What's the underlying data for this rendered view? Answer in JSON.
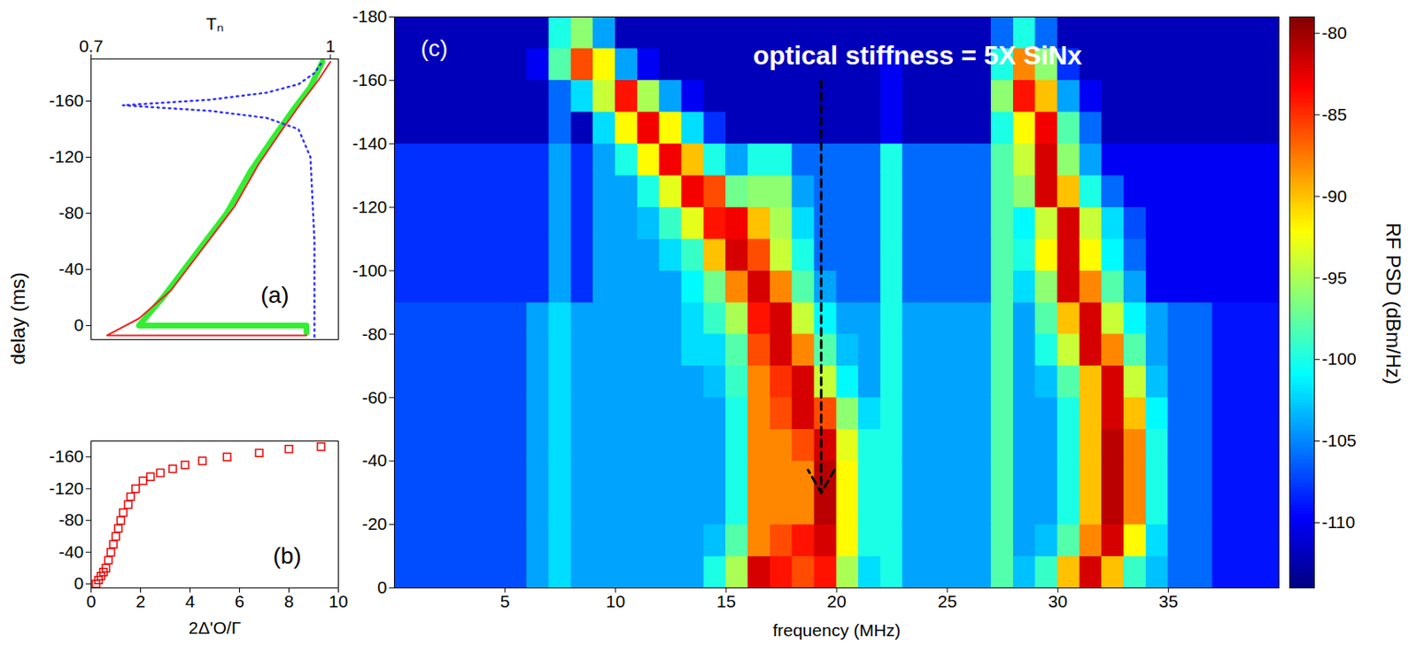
{
  "chart_data": [
    {
      "type": "line",
      "panel_label": "(a)",
      "x_label": "Tₙ",
      "y_label": "delay (ms)",
      "xlim": [
        0.7,
        1.01
      ],
      "xticks": [
        0.7,
        1
      ],
      "ylim": [
        10,
        -190
      ],
      "yticks": [
        -160,
        -120,
        -80,
        -40,
        0
      ],
      "series": [
        {
          "color": "#33ee33",
          "line_style": "solid",
          "x": [
            0.97,
            0.97,
            0.76,
            0.79,
            0.83,
            0.87,
            0.9,
            0.93,
            0.955,
            0.975,
            0.99
          ],
          "y": [
            5,
            0,
            0,
            -20,
            -50,
            -80,
            -110,
            -135,
            -155,
            -170,
            -188
          ]
        },
        {
          "color": "#ee2222",
          "line_style": "solid",
          "x": [
            0.97,
            0.72,
            0.76,
            0.8,
            0.84,
            0.88,
            0.91,
            0.94,
            0.965,
            0.985,
            1.0
          ],
          "y": [
            7,
            7,
            -5,
            -25,
            -55,
            -85,
            -115,
            -140,
            -160,
            -175,
            -188
          ]
        },
        {
          "color": "#3333ff",
          "line_style": "dotted",
          "x": [
            0.98,
            0.98,
            0.975,
            0.96,
            0.92,
            0.85,
            0.74,
            0.85,
            0.92,
            0.96,
            0.98,
            0.99
          ],
          "y": [
            8,
            -60,
            -120,
            -140,
            -148,
            -153,
            -157,
            -161,
            -166,
            -172,
            -180,
            -188
          ]
        }
      ]
    },
    {
      "type": "scatter",
      "panel_label": "(b)",
      "x_label": "2Δ'O/Γ",
      "xlim": [
        0,
        10
      ],
      "xticks": [
        0,
        2,
        4,
        6,
        8,
        10
      ],
      "ylim": [
        5,
        -180
      ],
      "yticks": [
        -160,
        -120,
        -80,
        -40,
        0
      ],
      "color": "#ee0000",
      "marker": "square",
      "x": [
        0.2,
        0.3,
        0.4,
        0.5,
        0.6,
        0.7,
        0.8,
        0.9,
        1.0,
        1.1,
        1.2,
        1.3,
        1.5,
        1.6,
        1.8,
        2.1,
        2.4,
        2.8,
        3.3,
        3.8,
        4.5,
        5.5,
        6.8,
        8.0,
        9.3
      ],
      "y": [
        0,
        -5,
        -10,
        -15,
        -20,
        -30,
        -40,
        -50,
        -60,
        -70,
        -80,
        -90,
        -100,
        -110,
        -120,
        -130,
        -135,
        -140,
        -145,
        -150,
        -155,
        -160,
        -165,
        -170,
        -173
      ]
    },
    {
      "type": "heatmap",
      "panel_label": "(c)",
      "x_label": "frequency (MHz)",
      "xlim": [
        0,
        40
      ],
      "xticks": [
        5,
        10,
        15,
        20,
        25,
        30,
        35
      ],
      "ylim": [
        0,
        -180
      ],
      "yticks": [
        -180,
        -160,
        -140,
        -120,
        -100,
        -80,
        -60,
        -40,
        -20,
        0
      ],
      "annotation": {
        "text": "optical stiffness = 5X SiNx",
        "arrow": {
          "x": 19.3,
          "y_from": -160,
          "y_to": -30
        }
      },
      "colorbar": {
        "label": "RF PSD (dBm/Hz)",
        "range": [
          -114,
          -79
        ],
        "ticks": [
          -80,
          -85,
          -90,
          -95,
          -100,
          -105,
          -110
        ]
      },
      "x_bins": [
        0,
        1,
        2,
        3,
        4,
        5,
        6,
        7,
        8,
        9,
        10,
        11,
        12,
        13,
        14,
        15,
        16,
        17,
        18,
        19,
        20,
        21,
        22,
        23,
        24,
        25,
        26,
        27,
        28,
        29,
        30,
        31,
        32,
        33,
        34,
        35,
        36,
        37,
        38,
        39,
        40
      ],
      "y_bins": [
        0,
        -10,
        -20,
        -30,
        -40,
        -50,
        -60,
        -70,
        -80,
        -90,
        -100,
        -110,
        -120,
        -130,
        -140,
        -150,
        -160,
        -170,
        -180
      ],
      "values": [
        [
          -107,
          -107,
          -107,
          -107,
          -107,
          -107,
          -104,
          -102,
          -104,
          -104,
          -104,
          -104,
          -104,
          -104,
          -100,
          -95,
          -82,
          -84,
          -86,
          -84,
          -95,
          -102,
          -100,
          -104,
          -104,
          -104,
          -104,
          -98,
          -103,
          -99,
          -90,
          -82,
          -90,
          -99,
          -103,
          -106,
          -106,
          -109,
          -109,
          -109
        ],
        [
          -107,
          -107,
          -107,
          -107,
          -107,
          -107,
          -104,
          -102,
          -104,
          -104,
          -104,
          -104,
          -104,
          -104,
          -103,
          -98,
          -88,
          -86,
          -84,
          -82,
          -92,
          -100,
          -100,
          -104,
          -104,
          -104,
          -104,
          -98,
          -104,
          -103,
          -98,
          -88,
          -82,
          -92,
          -102,
          -106,
          -106,
          -109,
          -109,
          -109
        ],
        [
          -107,
          -107,
          -107,
          -107,
          -107,
          -107,
          -104,
          -102,
          -104,
          -104,
          -104,
          -104,
          -104,
          -104,
          -104,
          -100,
          -88,
          -88,
          -88,
          -81,
          -92,
          -100,
          -100,
          -104,
          -104,
          -104,
          -104,
          -98,
          -104,
          -104,
          -100,
          -90,
          -81,
          -88,
          -100,
          -106,
          -106,
          -109,
          -109,
          -109
        ],
        [
          -107,
          -107,
          -107,
          -107,
          -107,
          -107,
          -104,
          -102,
          -104,
          -104,
          -104,
          -104,
          -104,
          -104,
          -104,
          -100,
          -88,
          -88,
          -88,
          -81,
          -92,
          -100,
          -100,
          -104,
          -104,
          -104,
          -104,
          -98,
          -104,
          -104,
          -100,
          -90,
          -81,
          -88,
          -100,
          -106,
          -106,
          -109,
          -109,
          -109
        ],
        [
          -107,
          -107,
          -107,
          -107,
          -107,
          -107,
          -104,
          -102,
          -104,
          -104,
          -104,
          -104,
          -104,
          -104,
          -104,
          -100,
          -88,
          -88,
          -86,
          -82,
          -93,
          -100,
          -100,
          -104,
          -104,
          -104,
          -104,
          -98,
          -104,
          -104,
          -100,
          -90,
          -81,
          -88,
          -100,
          -106,
          -106,
          -109,
          -109,
          -109
        ],
        [
          -107,
          -107,
          -107,
          -107,
          -107,
          -107,
          -104,
          -102,
          -104,
          -104,
          -104,
          -104,
          -104,
          -104,
          -104,
          -100,
          -88,
          -86,
          -82,
          -86,
          -96,
          -102,
          -100,
          -104,
          -104,
          -104,
          -104,
          -98,
          -104,
          -104,
          -100,
          -90,
          -82,
          -90,
          -101,
          -106,
          -106,
          -109,
          -109,
          -109
        ],
        [
          -107,
          -107,
          -107,
          -107,
          -107,
          -107,
          -104,
          -102,
          -104,
          -104,
          -104,
          -104,
          -104,
          -104,
          -103,
          -99,
          -88,
          -85,
          -82,
          -94,
          -101,
          -104,
          -100,
          -104,
          -104,
          -104,
          -104,
          -98,
          -104,
          -103,
          -98,
          -90,
          -82,
          -94,
          -103,
          -106,
          -106,
          -109,
          -109,
          -109
        ],
        [
          -107,
          -107,
          -107,
          -107,
          -107,
          -107,
          -104,
          -102,
          -104,
          -104,
          -104,
          -104,
          -104,
          -102,
          -102,
          -98,
          -86,
          -82,
          -88,
          -98,
          -103,
          -104,
          -100,
          -104,
          -104,
          -104,
          -104,
          -98,
          -104,
          -100,
          -94,
          -82,
          -88,
          -98,
          -104,
          -106,
          -106,
          -109,
          -109,
          -109
        ],
        [
          -107,
          -107,
          -107,
          -107,
          -107,
          -107,
          -104,
          -102,
          -104,
          -104,
          -104,
          -104,
          -104,
          -102,
          -99,
          -95,
          -84,
          -82,
          -94,
          -101,
          -104,
          -104,
          -100,
          -104,
          -104,
          -104,
          -104,
          -98,
          -104,
          -98,
          -90,
          -82,
          -94,
          -101,
          -104,
          -106,
          -106,
          -109,
          -109,
          -109
        ],
        [
          -108,
          -108,
          -108,
          -108,
          -108,
          -108,
          -108,
          -104,
          -108,
          -104,
          -104,
          -104,
          -104,
          -101,
          -97,
          -88,
          -82,
          -88,
          -98,
          -104,
          -106,
          -106,
          -100,
          -106,
          -106,
          -106,
          -106,
          -98,
          -102,
          -96,
          -82,
          -88,
          -98,
          -104,
          -110,
          -110,
          -110,
          -110,
          -110,
          -110
        ],
        [
          -108,
          -108,
          -108,
          -108,
          -108,
          -108,
          -108,
          -104,
          -108,
          -104,
          -104,
          -104,
          -102,
          -99,
          -90,
          -82,
          -86,
          -94,
          -100,
          -106,
          -106,
          -106,
          -100,
          -106,
          -106,
          -106,
          -106,
          -98,
          -100,
          -92,
          -82,
          -92,
          -101,
          -106,
          -110,
          -110,
          -110,
          -110,
          -110,
          -110
        ],
        [
          -108,
          -108,
          -108,
          -108,
          -108,
          -108,
          -108,
          -104,
          -108,
          -104,
          -104,
          -103,
          -99,
          -93,
          -84,
          -83,
          -90,
          -95,
          -102,
          -106,
          -106,
          -106,
          -100,
          -106,
          -106,
          -106,
          -106,
          -98,
          -101,
          -94,
          -82,
          -94,
          -102,
          -107,
          -110,
          -110,
          -110,
          -110,
          -110,
          -110
        ],
        [
          -108,
          -108,
          -108,
          -108,
          -108,
          -108,
          -108,
          -104,
          -108,
          -104,
          -104,
          -100,
          -93,
          -83,
          -86,
          -97,
          -96,
          -96,
          -104,
          -106,
          -106,
          -106,
          -100,
          -106,
          -106,
          -106,
          -106,
          -98,
          -96,
          -82,
          -90,
          -100,
          -106,
          -110,
          -110,
          -110,
          -110,
          -110,
          -110,
          -110
        ],
        [
          -108,
          -108,
          -108,
          -108,
          -108,
          -108,
          -108,
          -104,
          -108,
          -104,
          -100,
          -92,
          -83,
          -90,
          -100,
          -104,
          -100,
          -100,
          -106,
          -106,
          -106,
          -106,
          -100,
          -106,
          -106,
          -106,
          -106,
          -98,
          -94,
          -82,
          -96,
          -104,
          -110,
          -110,
          -110,
          -110,
          -110,
          -110,
          -110,
          -110
        ],
        [
          -112,
          -112,
          -112,
          -112,
          -112,
          -112,
          -112,
          -106,
          -112,
          -102,
          -92,
          -83,
          -92,
          -102,
          -108,
          -112,
          -112,
          -112,
          -112,
          -112,
          -112,
          -112,
          -110,
          -112,
          -112,
          -112,
          -112,
          -100,
          -92,
          -83,
          -98,
          -106,
          -112,
          -112,
          -112,
          -112,
          -112,
          -112,
          -112,
          -112
        ],
        [
          -112,
          -112,
          -112,
          -112,
          -112,
          -112,
          -112,
          -106,
          -102,
          -94,
          -84,
          -95,
          -104,
          -110,
          -112,
          -112,
          -112,
          -112,
          -112,
          -112,
          -112,
          -112,
          -110,
          -112,
          -112,
          -112,
          -112,
          -96,
          -84,
          -90,
          -104,
          -110,
          -112,
          -112,
          -112,
          -112,
          -112,
          -112,
          -112,
          -112
        ],
        [
          -112,
          -112,
          -112,
          -112,
          -112,
          -112,
          -110,
          -98,
          -86,
          -92,
          -104,
          -110,
          -112,
          -112,
          -112,
          -112,
          -112,
          -112,
          -112,
          -112,
          -112,
          -112,
          -110,
          -112,
          -112,
          -112,
          -112,
          -100,
          -88,
          -96,
          -108,
          -112,
          -112,
          -112,
          -112,
          -112,
          -112,
          -112,
          -112,
          -112
        ],
        [
          -112,
          -112,
          -112,
          -112,
          -112,
          -112,
          -112,
          -100,
          -96,
          -104,
          -112,
          -112,
          -112,
          -112,
          -112,
          -112,
          -112,
          -112,
          -112,
          -112,
          -112,
          -112,
          -112,
          -112,
          -112,
          -112,
          -112,
          -106,
          -100,
          -106,
          -112,
          -112,
          -112,
          -112,
          -112,
          -112,
          -112,
          -112,
          -112,
          -112
        ]
      ]
    }
  ]
}
